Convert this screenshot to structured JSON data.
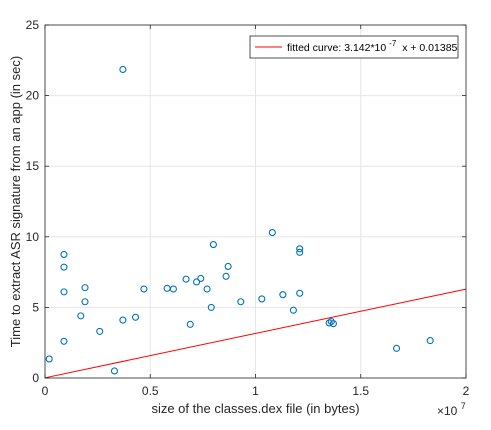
{
  "chart_data": {
    "type": "scatter",
    "title": "",
    "xlabel": "size of the classes.dex file (in bytes)",
    "ylabel": "Time to extract ASR signature from an app (in sec)",
    "x_exponent_label": "×10",
    "x_exponent_power": "7",
    "x_scale_factor": 10000000,
    "xlim": [
      0,
      20000000
    ],
    "ylim": [
      0,
      25
    ],
    "x_ticks": [
      "0",
      "0.5",
      "1",
      "1.5",
      "2"
    ],
    "y_ticks": [
      "0",
      "5",
      "10",
      "15",
      "20",
      "25"
    ],
    "grid": true,
    "legend_position": "top-right",
    "series": [
      {
        "name": "",
        "kind": "scatter",
        "marker": "open-circle",
        "color": "#0072bd",
        "points": [
          [
            3700000,
            21.85
          ],
          [
            10800000,
            10.3
          ],
          [
            12100000,
            9.15
          ],
          [
            12100000,
            8.9
          ],
          [
            8000000,
            9.45
          ],
          [
            900000,
            8.75
          ],
          [
            900000,
            7.85
          ],
          [
            4700000,
            6.3
          ],
          [
            1900000,
            6.4
          ],
          [
            900000,
            6.1
          ],
          [
            1900000,
            5.4
          ],
          [
            3700000,
            4.1
          ],
          [
            1700000,
            4.4
          ],
          [
            4300000,
            4.3
          ],
          [
            6700000,
            7.0
          ],
          [
            7400000,
            7.05
          ],
          [
            8600000,
            7.2
          ],
          [
            8700000,
            7.9
          ],
          [
            5800000,
            6.35
          ],
          [
            6100000,
            6.3
          ],
          [
            7700000,
            6.3
          ],
          [
            9300000,
            5.4
          ],
          [
            13600000,
            4.0
          ],
          [
            13500000,
            3.9
          ],
          [
            13700000,
            3.85
          ],
          [
            16700000,
            2.1
          ],
          [
            18300000,
            2.65
          ],
          [
            200000,
            1.35
          ],
          [
            900000,
            2.6
          ],
          [
            2600000,
            3.3
          ],
          [
            12100000,
            6.0
          ],
          [
            11300000,
            5.9
          ],
          [
            10300000,
            5.6
          ],
          [
            11800000,
            4.8
          ],
          [
            3300000,
            0.5
          ],
          [
            6900000,
            3.8
          ],
          [
            7200000,
            6.8
          ],
          [
            7900000,
            5.0
          ]
        ]
      }
    ],
    "fit": {
      "name": "fitted curve: 3.142*10^-7 x + 0.01385",
      "legend_text_a": "fitted curve: 3.142*10",
      "legend_text_exp": "-7",
      "legend_text_b": "x + 0.01385",
      "slope": 3.142e-07,
      "intercept": 0.01385,
      "color": "#ff0000"
    }
  }
}
